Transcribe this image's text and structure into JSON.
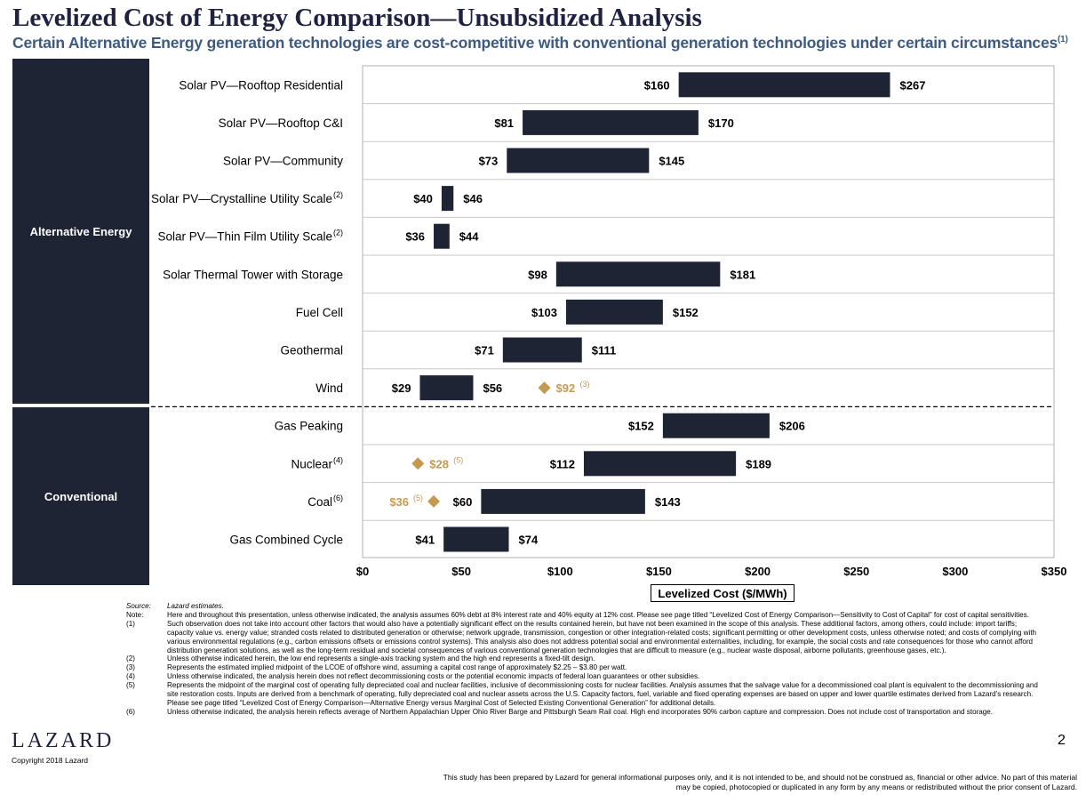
{
  "title": "Levelized Cost of Energy Comparison—Unsubsidized Analysis",
  "subtitle": "Certain Alternative Energy generation technologies are cost-competitive with conventional generation technologies under certain circumstances",
  "subtitle_note": "(1)",
  "groups": {
    "alternative": "Alternative Energy",
    "conventional": "Conventional"
  },
  "chart_data": {
    "type": "bar",
    "subtype": "floating-range-horizontal",
    "categories": [
      {
        "label": "Solar PV—Rooftop Residential",
        "note": ""
      },
      {
        "label": "Solar PV—Rooftop C&I",
        "note": ""
      },
      {
        "label": "Solar PV—Community",
        "note": ""
      },
      {
        "label": "Solar PV—Crystalline Utility  Scale",
        "note": "(2)"
      },
      {
        "label": "Solar PV—Thin Film  Utility  Scale",
        "note": "(2)"
      },
      {
        "label": "Solar Thermal Tower with Storage",
        "note": ""
      },
      {
        "label": "Fuel Cell",
        "note": ""
      },
      {
        "label": "Geothermal",
        "note": ""
      },
      {
        "label": "Wind",
        "note": ""
      },
      {
        "label": "Gas Peaking",
        "note": ""
      },
      {
        "label": "Nuclear",
        "note": "(4)"
      },
      {
        "label": "Coal",
        "note": "(6)"
      },
      {
        "label": "Gas Combined Cycle",
        "note": ""
      }
    ],
    "low": [
      160,
      81,
      73,
      40,
      36,
      98,
      103,
      71,
      29,
      152,
      112,
      60,
      41
    ],
    "high": [
      267,
      170,
      145,
      46,
      44,
      181,
      152,
      111,
      56,
      206,
      189,
      143,
      74
    ],
    "low_labels": [
      "$160",
      "$81",
      "$73",
      "$40",
      "$36",
      "$98",
      "$103",
      "$71",
      "$29",
      "$152",
      "$112",
      "$60",
      "$41"
    ],
    "high_labels": [
      "$267",
      "$170",
      "$145",
      "$46",
      "$44",
      "$181",
      "$152",
      "$111",
      "$56",
      "$206",
      "$189",
      "$143",
      "$74"
    ],
    "markers": [
      {
        "row": 8,
        "value": 92,
        "label": "$92",
        "note": "(3)",
        "label_side": "right"
      },
      {
        "row": 10,
        "value": 28,
        "label": "$28",
        "note": "(5)",
        "label_side": "right"
      },
      {
        "row": 11,
        "value": 36,
        "label": "$36",
        "note": "(5)",
        "label_side": "left"
      }
    ],
    "group_split_after_row": 8,
    "xlim": [
      0,
      350
    ],
    "xticks": [
      0,
      50,
      100,
      150,
      200,
      250,
      300,
      350
    ],
    "xtick_labels": [
      "$0",
      "$50",
      "$100",
      "$150",
      "$200",
      "$250",
      "$300",
      "$350"
    ],
    "xlabel": "Levelized Cost ($/MWh)",
    "grid": "horizontal",
    "colors": {
      "bar": "#1f2435",
      "marker": "#c49a52",
      "grid": "#c8c8c8"
    }
  },
  "notes": [
    {
      "key": "Source:",
      "text": "Lazard estimates."
    },
    {
      "key": "Note:",
      "text": "Here and throughout this presentation, unless otherwise indicated, the analysis assumes 60% debt at 8% interest rate and 40% equity at 12% cost. Please see page titled “Levelized Cost of Energy Comparison—Sensitivity to Cost of Capital” for cost of capital sensitivities."
    },
    {
      "key": "(1)",
      "text": "Such observation does not take into account other factors that would also have a potentially significant effect on the results contained herein, but have not been examined in the scope of this analysis. These additional factors, among others, could include: import tariffs; capacity value vs. energy value; stranded costs related to distributed generation or otherwise; network upgrade, transmission, congestion or other integration-related costs; significant permitting or other development costs, unless otherwise noted; and costs of complying with various environmental regulations (e.g., carbon emissions offsets or emissions control systems). This analysis also does not address potential social and environmental externalities, including, for example, the social costs and rate consequences for those who cannot afford distribution generation solutions, as well as the long-term residual and societal consequences of various conventional generation technologies that are difficult to measure (e.g., nuclear waste disposal, airborne pollutants, greenhouse gases, etc.)."
    },
    {
      "key": "(2)",
      "text": "Unless otherwise indicated herein, the low end represents a single-axis tracking system and the high end represents a fixed-tilt design."
    },
    {
      "key": "(3)",
      "text": "Represents the estimated implied midpoint of the LCOE of offshore wind, assuming a capital cost range of approximately $2.25 – $3.80 per watt."
    },
    {
      "key": "(4)",
      "text": "Unless otherwise indicated, the analysis herein does not reflect decommissioning costs or the potential economic impacts of federal loan guarantees or other subsidies."
    },
    {
      "key": "(5)",
      "text": "Represents the midpoint of the marginal cost of operating fully depreciated coal and nuclear facilities, inclusive of decommissioning costs for nuclear facilities. Analysis assumes that the salvage value for a decommissioned coal plant is equivalent to the decommissioning and site restoration costs. Inputs are derived from a benchmark of operating, fully depreciated coal and nuclear assets across the U.S. Capacity factors, fuel, variable and fixed operating expenses are based on upper and lower quartile estimates derived from Lazard’s research. Please see page titled “Levelized Cost of Energy Comparison—Alternative Energy versus Marginal Cost of Selected Existing Conventional Generation” for additional details."
    },
    {
      "key": "(6)",
      "text": "Unless otherwise indicated, the analysis herein reflects average of Northern Appalachian Upper Ohio River Barge and Pittsburgh Seam Rail coal. High end incorporates 90% carbon capture and compression. Does not include cost of transportation and storage."
    }
  ],
  "footer": {
    "brand": "LAZARD",
    "copyright": "Copyright 2018 Lazard",
    "page": "2",
    "disclaimer": "This study has been prepared by Lazard for general informational purposes only, and it is not intended to be, and should not be construed as, financial or other advice. No part of this material may be copied, photocopied or duplicated in any form by any means or redistributed without the prior consent of Lazard."
  }
}
